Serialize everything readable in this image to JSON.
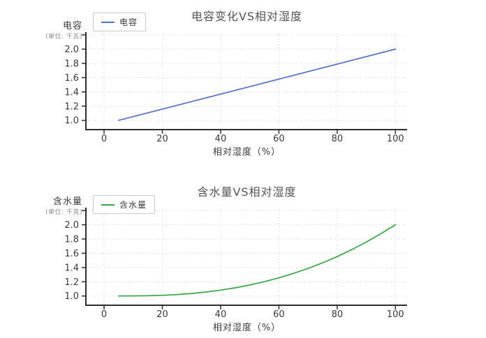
{
  "charts": [
    {
      "title": "电容变化VS相对湿度",
      "legend_label": "电容",
      "y_axis_name": "电容",
      "y_axis_unit": "(单位: 千瓦)",
      "x_axis_label": "相对湿度（%）",
      "line_color": "#5470c6"
    },
    {
      "title": "含水量VS相对湿度",
      "legend_label": "含水量",
      "y_axis_name": "含水量",
      "y_axis_unit": "(单位: 千克)",
      "x_axis_label": "相对湿度（%）",
      "line_color": "#3aa546"
    }
  ],
  "chart_data": [
    {
      "type": "line",
      "title": "电容变化VS相对湿度",
      "xlabel": "相对湿度（%）",
      "ylabel": "电容 (单位: 千瓦)",
      "legend": [
        "电容"
      ],
      "legend_position": "top-left",
      "grid": true,
      "grid_style": "dotted",
      "xlim": [
        -6,
        104
      ],
      "ylim": [
        0.88,
        2.22
      ],
      "xticks": [
        0,
        20,
        40,
        60,
        80,
        100
      ],
      "yticks": [
        1.0,
        1.2,
        1.4,
        1.6,
        1.8,
        2.0
      ],
      "x_gridlines": [
        0,
        20,
        40,
        60,
        80,
        100
      ],
      "y_gridlines": [
        1.0,
        1.2,
        1.4,
        1.6,
        1.8,
        2.0,
        2.2
      ],
      "series": [
        {
          "id": "capacitance",
          "name": "电容",
          "color": "#5470c6",
          "x": [
            5,
            100
          ],
          "y": [
            1.0,
            2.0
          ]
        }
      ]
    },
    {
      "type": "line",
      "title": "含水量VS相对湿度",
      "xlabel": "相对湿度（%）",
      "ylabel": "含水量 (单位: 千克)",
      "legend": [
        "含水量"
      ],
      "legend_position": "top-left",
      "grid": true,
      "grid_style": "dotted",
      "xlim": [
        -6,
        104
      ],
      "ylim": [
        0.88,
        2.22
      ],
      "xticks": [
        0,
        20,
        40,
        60,
        80,
        100
      ],
      "yticks": [
        1.0,
        1.2,
        1.4,
        1.6,
        1.8,
        2.0
      ],
      "x_gridlines": [
        0,
        20,
        40,
        60,
        80,
        100
      ],
      "y_gridlines": [
        1.0,
        1.2,
        1.4,
        1.6,
        1.8,
        2.0,
        2.2
      ],
      "series": [
        {
          "id": "water-content",
          "name": "含水量",
          "color": "#3aa546",
          "x": [
            5,
            10,
            15,
            20,
            25,
            30,
            35,
            40,
            45,
            50,
            55,
            60,
            65,
            70,
            75,
            80,
            85,
            90,
            95,
            100
          ],
          "y": [
            1.0,
            1.001,
            1.004,
            1.01,
            1.02,
            1.036,
            1.056,
            1.082,
            1.115,
            1.154,
            1.201,
            1.255,
            1.317,
            1.387,
            1.466,
            1.553,
            1.651,
            1.757,
            1.874,
            2.0
          ]
        }
      ]
    }
  ]
}
